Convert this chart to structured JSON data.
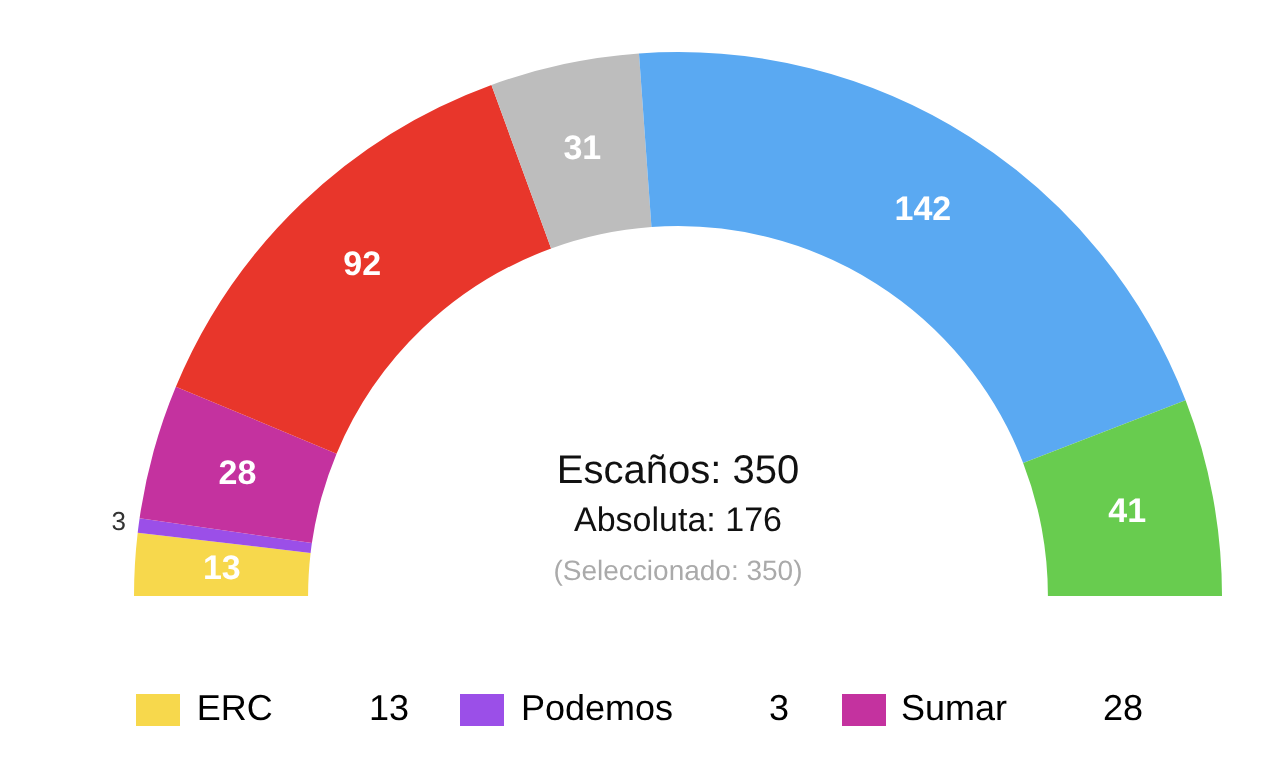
{
  "chart_data": {
    "type": "donut",
    "categories": [
      "ERC",
      "Podemos",
      "Sumar",
      null,
      null,
      null,
      null
    ],
    "values": [
      13,
      3,
      28,
      92,
      31,
      142,
      41
    ],
    "colors": [
      "#f7d84c",
      "#9b4fe8",
      "#c4329f",
      "#e8362b",
      "#bdbdbd",
      "#5aa9f2",
      "#68cc4f"
    ],
    "value_labels": [
      "13",
      "3",
      "28",
      "92",
      "31",
      "142",
      "41"
    ],
    "legend": "bottom",
    "annotations": [
      "Escaños: 350",
      "Absoluta: 176",
      "(Seleccionado: 350)"
    ]
  }
}
